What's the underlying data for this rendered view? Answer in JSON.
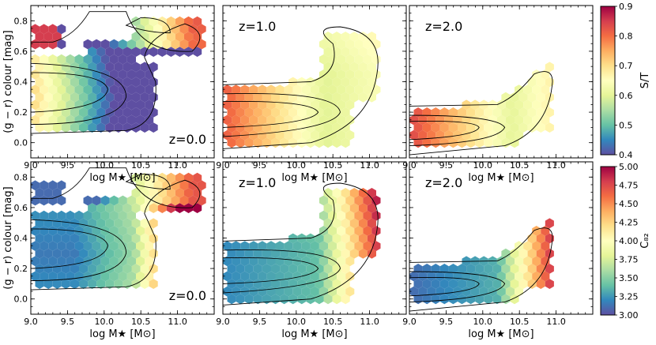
{
  "figure": {
    "xlabel": "log M★ [M⊙]",
    "ylabel": "(g − r) colour [mag]"
  },
  "colorbars": [
    {
      "label": "S/T",
      "min": 0.4,
      "max": 0.9,
      "ticks": [
        "0.4",
        "0.5",
        "0.6",
        "0.7",
        "0.8",
        "0.9"
      ],
      "low_color": "#4a4aa8",
      "high_color": "#9e0142"
    },
    {
      "label": "C₈₂",
      "min": 3.0,
      "max": 5.0,
      "ticks": [
        "3.00",
        "3.25",
        "3.50",
        "3.75",
        "4.00",
        "4.25",
        "4.50",
        "4.75",
        "5.00"
      ],
      "low_color": "#4a4aa8",
      "high_color": "#9e0142"
    }
  ],
  "chart_data": [
    {
      "type": "heatmap",
      "subtype": "hexbin",
      "row": 0,
      "col": 0,
      "colorbar": "S/T",
      "annotation": "z=0.0",
      "annotation_pos": "bottom-right",
      "xlim": [
        9.0,
        11.5
      ],
      "ylim": [
        -0.1,
        0.9
      ],
      "xticks": [
        "9.0",
        "9.5",
        "10.0",
        "10.5",
        "11.0"
      ],
      "yticks": [
        "0.0",
        "0.2",
        "0.4",
        "0.6",
        "0.8"
      ],
      "xlabel": "log M★ [M⊙]",
      "ylabel": "(g − r) colour [mag]"
    },
    {
      "type": "heatmap",
      "subtype": "hexbin",
      "row": 0,
      "col": 1,
      "colorbar": "S/T",
      "annotation": "z=1.0",
      "annotation_pos": "top-left",
      "xlim": [
        9.0,
        11.5
      ],
      "ylim": [
        -0.1,
        0.9
      ],
      "xticks": [
        "9.0",
        "9.5",
        "10.0",
        "10.5",
        "11.0"
      ],
      "yticks": [],
      "xlabel": "log M★ [M⊙]",
      "ylabel": ""
    },
    {
      "type": "heatmap",
      "subtype": "hexbin",
      "row": 0,
      "col": 2,
      "colorbar": "S/T",
      "annotation": "z=2.0",
      "annotation_pos": "top-left",
      "xlim": [
        9.0,
        11.5
      ],
      "ylim": [
        -0.1,
        0.9
      ],
      "xticks": [
        "9.0",
        "9.5",
        "10.0",
        "10.5",
        "11.0"
      ],
      "yticks": [],
      "xlabel": "log M★ [M⊙]",
      "ylabel": ""
    },
    {
      "type": "heatmap",
      "subtype": "hexbin",
      "row": 1,
      "col": 0,
      "colorbar": "C₈₂",
      "annotation": "z=0.0",
      "annotation_pos": "bottom-right",
      "xlim": [
        9.0,
        11.5
      ],
      "ylim": [
        -0.1,
        0.9
      ],
      "xticks": [
        "9.0",
        "9.5",
        "10.0",
        "10.5",
        "11.0"
      ],
      "yticks": [
        "0.0",
        "0.2",
        "0.4",
        "0.6",
        "0.8"
      ],
      "xlabel": "log M★ [M⊙]",
      "ylabel": "(g − r) colour [mag]"
    },
    {
      "type": "heatmap",
      "subtype": "hexbin",
      "row": 1,
      "col": 1,
      "colorbar": "C₈₂",
      "annotation": "z=1.0",
      "annotation_pos": "top-left",
      "xlim": [
        9.0,
        11.5
      ],
      "ylim": [
        -0.1,
        0.9
      ],
      "xticks": [
        "9.0",
        "9.5",
        "10.0",
        "10.5",
        "11.0"
      ],
      "yticks": [],
      "xlabel": "log M★ [M⊙]",
      "ylabel": ""
    },
    {
      "type": "heatmap",
      "subtype": "hexbin",
      "row": 1,
      "col": 2,
      "colorbar": "C₈₂",
      "annotation": "z=2.0",
      "annotation_pos": "top-left",
      "xlim": [
        9.0,
        11.5
      ],
      "ylim": [
        -0.1,
        0.9
      ],
      "xticks": [
        "9.0",
        "9.5",
        "10.0",
        "10.5",
        "11.0"
      ],
      "yticks": [],
      "xlabel": "log M★ [M⊙]",
      "ylabel": ""
    }
  ]
}
